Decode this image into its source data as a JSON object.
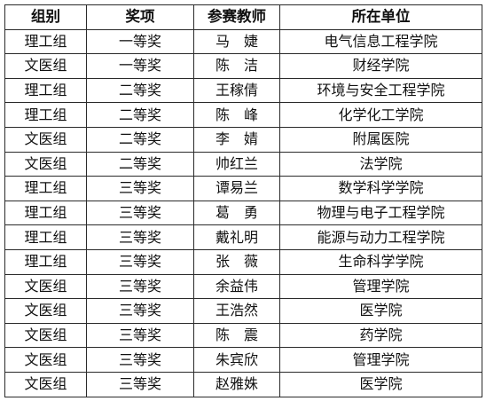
{
  "table": {
    "headers": [
      "组别",
      "奖项",
      "参赛教师",
      "所在单位"
    ],
    "rows": [
      [
        "理工组",
        "一等奖",
        "马　婕",
        "电气信息工程学院"
      ],
      [
        "文医组",
        "一等奖",
        "陈　洁",
        "财经学院"
      ],
      [
        "理工组",
        "二等奖",
        "王稼倩",
        "环境与安全工程学院"
      ],
      [
        "理工组",
        "二等奖",
        "陈　峰",
        "化学化工学院"
      ],
      [
        "文医组",
        "二等奖",
        "李　婧",
        "附属医院"
      ],
      [
        "文医组",
        "二等奖",
        "帅红兰",
        "法学院"
      ],
      [
        "理工组",
        "三等奖",
        "谭易兰",
        "数学科学学院"
      ],
      [
        "理工组",
        "三等奖",
        "葛　勇",
        "物理与电子工程学院"
      ],
      [
        "理工组",
        "三等奖",
        "戴礼明",
        "能源与动力工程学院"
      ],
      [
        "理工组",
        "三等奖",
        "张　薇",
        "生命科学学院"
      ],
      [
        "文医组",
        "三等奖",
        "余益伟",
        "管理学院"
      ],
      [
        "文医组",
        "三等奖",
        "王浩然",
        "医学院"
      ],
      [
        "文医组",
        "三等奖",
        "陈　震",
        "药学院"
      ],
      [
        "文医组",
        "三等奖",
        "朱宾欣",
        "管理学院"
      ],
      [
        "文医组",
        "三等奖",
        "赵雅姝",
        "医学院"
      ]
    ]
  }
}
